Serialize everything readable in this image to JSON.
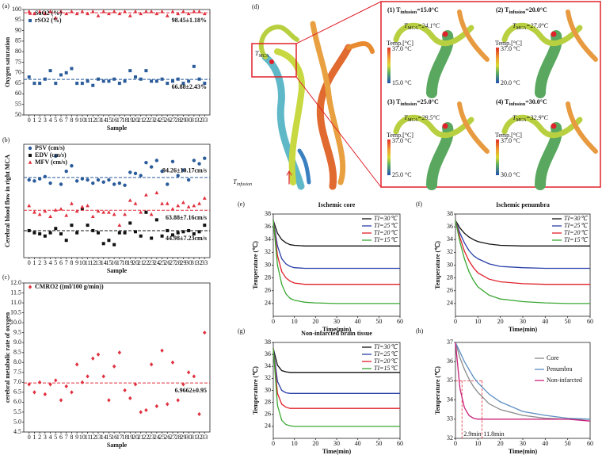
{
  "chart_data": [
    {
      "type": "scatter",
      "panel": "(a)",
      "ylabel": "Oxygen saturation",
      "xlabel": "Sample",
      "legend": "upper left",
      "x": [
        0,
        1,
        2,
        3,
        4,
        5,
        6,
        7,
        8,
        9,
        10,
        11,
        12,
        13,
        14,
        15,
        16,
        17,
        18,
        19,
        20,
        21,
        22,
        23,
        24,
        25,
        26,
        27,
        28,
        29,
        30,
        31,
        32,
        33
      ],
      "xlim": [
        -1,
        34
      ],
      "xticks": [
        0,
        1,
        2,
        3,
        4,
        5,
        6,
        7,
        8,
        9,
        10,
        11,
        12,
        13,
        14,
        15,
        16,
        17,
        18,
        19,
        20,
        21,
        22,
        23,
        24,
        25,
        26,
        27,
        28,
        29,
        30,
        31,
        32,
        33
      ],
      "ylim": [
        50,
        100
      ],
      "yticks": [
        50,
        55,
        60,
        65,
        70,
        75,
        80,
        85,
        90,
        95,
        100
      ],
      "series": [
        {
          "name": "SaO2 (%)",
          "color": "#e0303e",
          "marker": "triangle",
          "mean": 98.45,
          "mean_label": "98.45±1.18%",
          "values": [
            99,
            98,
            99,
            98,
            99,
            96,
            99,
            98,
            99,
            98,
            99,
            98,
            99,
            97,
            99,
            98,
            99,
            98,
            99,
            97,
            99,
            98,
            99,
            99,
            98,
            99,
            97,
            99,
            98,
            99,
            98,
            99,
            99,
            98
          ]
        },
        {
          "name": "rSO2 (%)",
          "color": "#2a5b9a",
          "marker": "square",
          "mean": 66.88,
          "mean_label": "66.88±2.43%",
          "values": [
            68,
            65,
            65,
            67,
            71,
            65,
            69,
            70,
            72,
            65,
            65,
            66,
            64,
            67,
            66,
            66,
            67,
            65,
            66,
            71,
            68,
            67,
            71,
            66,
            66,
            67,
            65,
            66,
            67,
            65,
            66,
            73,
            67,
            65
          ]
        }
      ]
    },
    {
      "type": "scatter",
      "panel": "(b)",
      "ylabel": "Cerebral blood flow in right MCA",
      "xlabel": "Sample",
      "legend": "upper left",
      "x": [
        0,
        1,
        2,
        3,
        4,
        5,
        6,
        7,
        8,
        9,
        10,
        11,
        12,
        13,
        14,
        15,
        16,
        17,
        18,
        19,
        20,
        21,
        22,
        23,
        24,
        25,
        26,
        27,
        28,
        29,
        30,
        31,
        32,
        33
      ],
      "xlim": [
        -1,
        34
      ],
      "xticks": [
        0,
        1,
        2,
        3,
        4,
        5,
        6,
        7,
        8,
        9,
        10,
        11,
        12,
        13,
        14,
        15,
        16,
        17,
        18,
        19,
        20,
        21,
        22,
        23,
        24,
        25,
        26,
        27,
        28,
        29,
        30,
        31,
        32,
        33
      ],
      "ylim": [
        20,
        125
      ],
      "series": [
        {
          "name": "PSV (cm/s)",
          "color": "#2a5b9a",
          "marker": "circle",
          "mean": 94.26,
          "mean_label": "94.26±10.17cm/s",
          "values": [
            92,
            91,
            93,
            95,
            89,
            114,
            88,
            100,
            105,
            91,
            93,
            92,
            89,
            92,
            90,
            92,
            88,
            89,
            87,
            99,
            98,
            96,
            108,
            104,
            110,
            100,
            88,
            109,
            96,
            101,
            92,
            110,
            107,
            112
          ]
        },
        {
          "name": "EDV (cm/s)",
          "color": "#111111",
          "marker": "square",
          "mean": 44.98,
          "mean_label": "44.98±7.23cm/s",
          "values": [
            45,
            43,
            42,
            40,
            43,
            47,
            42,
            36,
            50,
            43,
            65,
            50,
            45,
            43,
            33,
            36,
            32,
            43,
            43,
            52,
            44,
            40,
            62,
            38,
            55,
            40,
            45,
            41,
            43,
            44,
            45,
            42,
            44,
            50
          ]
        },
        {
          "name": "MFV (cm/s)",
          "color": "#e0303e",
          "marker": "triangle",
          "mean": 63.88,
          "mean_label": "63.88±7.16cm/s",
          "values": [
            68,
            62,
            60,
            63,
            58,
            64,
            65,
            59,
            70,
            63,
            67,
            68,
            58,
            63,
            62,
            62,
            60,
            50,
            60,
            73,
            70,
            62,
            78,
            60,
            80,
            70,
            70,
            65,
            68,
            71,
            67,
            68,
            70,
            75
          ]
        }
      ]
    },
    {
      "type": "scatter",
      "panel": "(c)",
      "ylabel": "cerebral metabolic rate of oxygen",
      "xlabel": "Sample",
      "legend": "upper left",
      "x": [
        0,
        1,
        2,
        3,
        4,
        5,
        6,
        7,
        8,
        9,
        10,
        11,
        12,
        13,
        14,
        15,
        16,
        17,
        18,
        19,
        20,
        21,
        22,
        23,
        24,
        25,
        26,
        27,
        28,
        29,
        30,
        31,
        32,
        33
      ],
      "xlim": [
        -1,
        34
      ],
      "xticks": [
        0,
        1,
        2,
        3,
        4,
        5,
        6,
        7,
        8,
        9,
        10,
        11,
        12,
        13,
        14,
        15,
        16,
        17,
        18,
        19,
        20,
        21,
        22,
        23,
        24,
        25,
        26,
        27,
        28,
        29,
        30,
        31,
        32,
        33
      ],
      "ylim": [
        4.5,
        12
      ],
      "yticks": [
        4.5,
        {
          "value": 5,
          "label": "5.0"
        },
        5.5,
        {
          "value": 6,
          "label": "6.0"
        },
        6.5,
        {
          "value": 7,
          "label": "7.0"
        },
        7.5,
        {
          "value": 8,
          "label": "8.0"
        },
        8.5,
        {
          "value": 9,
          "label": "9.0"
        },
        9.5,
        {
          "value": 10,
          "label": "10.0"
        },
        10.5,
        {
          "value": 11,
          "label": "11.0"
        },
        11.5,
        {
          "value": 12,
          "label": "12.0"
        }
      ],
      "series": [
        {
          "name": "CMRO2 ((ml/100 g/min))",
          "color": "#e0303e",
          "marker": "diamond",
          "mean": 6.9662,
          "mean_label": "6.9662±0.95",
          "values": [
            6.9,
            6.5,
            7.0,
            6.4,
            6.9,
            7.1,
            6.1,
            6.8,
            6.5,
            7.9,
            7.0,
            7.3,
            8.2,
            8.4,
            7.3,
            6.1,
            7.8,
            8.5,
            6.6,
            6.2,
            6.9,
            5.5,
            5.6,
            7.9,
            5.8,
            8.6,
            5.9,
            8.0,
            6.1,
            6.9,
            7.5,
            7.3,
            5.4,
            9.5
          ]
        }
      ]
    },
    {
      "type": "line",
      "panel": "(e)",
      "title": "Ischemic core",
      "ylabel": "Temperature (℃)",
      "xlabel": "Time(min)",
      "legend": "upper right",
      "x": [
        0,
        2,
        4,
        6,
        8,
        10,
        15,
        20,
        30,
        40,
        50,
        60
      ],
      "xlim": [
        0,
        60
      ],
      "xticks": [
        0,
        10,
        20,
        30,
        40,
        50,
        60
      ],
      "ylim": [
        22,
        38
      ],
      "yticks": [
        24,
        26,
        28,
        30,
        32,
        34,
        36,
        38
      ],
      "series": [
        {
          "name": "TI=30℃",
          "color": "#111111",
          "values": [
            37,
            35.0,
            34.0,
            33.5,
            33.2,
            33.1,
            33.0,
            33,
            33,
            33,
            33,
            33
          ]
        },
        {
          "name": "TI=25℃",
          "color": "#2a3fa8",
          "values": [
            37,
            33.0,
            31.0,
            30.2,
            29.8,
            29.6,
            29.5,
            29.5,
            29.5,
            29.5,
            29.5,
            29.5
          ]
        },
        {
          "name": "TI=20℃",
          "color": "#e0202a",
          "values": [
            37,
            31.5,
            29.0,
            28.0,
            27.5,
            27.2,
            27.0,
            27,
            27,
            27,
            27,
            27
          ]
        },
        {
          "name": "TI=15℃",
          "color": "#3aa832",
          "values": [
            37,
            30.0,
            27.0,
            25.5,
            24.8,
            24.5,
            24.2,
            24.1,
            24,
            24,
            24,
            24
          ]
        }
      ]
    },
    {
      "type": "line",
      "panel": "(f)",
      "title": "Ischemic penumbra",
      "ylabel": "Temperature (℃)",
      "xlabel": "Time(min)",
      "legend": "upper right",
      "x": [
        0,
        2,
        4,
        6,
        8,
        10,
        15,
        20,
        30,
        40,
        50,
        60
      ],
      "xlim": [
        0,
        60
      ],
      "xticks": [
        0,
        10,
        20,
        30,
        40,
        50,
        60
      ],
      "ylim": [
        22,
        38
      ],
      "yticks": [
        24,
        26,
        28,
        30,
        32,
        34,
        36,
        38
      ],
      "series": [
        {
          "name": "TI=30℃",
          "color": "#111111",
          "values": [
            37,
            35.8,
            35.0,
            34.4,
            34.0,
            33.7,
            33.3,
            33.1,
            33.0,
            33,
            33,
            33
          ]
        },
        {
          "name": "TI=25℃",
          "color": "#2a3fa8",
          "values": [
            37,
            35.0,
            33.5,
            32.3,
            31.5,
            31.0,
            30.2,
            29.8,
            29.6,
            29.5,
            29.5,
            29.5
          ]
        },
        {
          "name": "TI=20℃",
          "color": "#e0202a",
          "values": [
            37,
            34.3,
            32.2,
            30.7,
            29.6,
            28.8,
            27.8,
            27.4,
            27.1,
            27.0,
            27,
            27
          ]
        },
        {
          "name": "TI=15℃",
          "color": "#3aa832",
          "values": [
            37,
            33.6,
            31.0,
            29.0,
            27.6,
            26.6,
            25.3,
            24.7,
            24.3,
            24.1,
            24,
            24
          ]
        }
      ]
    },
    {
      "type": "line",
      "panel": "(g)",
      "title": "Non-infarcted brain tissue",
      "ylabel": "Temperature (℃)",
      "xlabel": "Time(min)",
      "legend": "upper right",
      "x": [
        0,
        2,
        4,
        6,
        8,
        10,
        15,
        20,
        30,
        40,
        50,
        60
      ],
      "xlim": [
        0,
        60
      ],
      "xticks": [
        0,
        10,
        20,
        30,
        40,
        50,
        60
      ],
      "ylim": [
        22,
        38
      ],
      "yticks": [
        24,
        26,
        28,
        30,
        32,
        34,
        36,
        38
      ],
      "series": [
        {
          "name": "TI=30℃",
          "color": "#111111",
          "values": [
            37,
            34.2,
            33.3,
            33.1,
            33,
            33,
            33,
            33,
            33,
            33,
            33,
            33
          ]
        },
        {
          "name": "TI=25℃",
          "color": "#2a3fa8",
          "values": [
            37,
            31.5,
            30.0,
            29.6,
            29.5,
            29.5,
            29.5,
            29.5,
            29.5,
            29.5,
            29.5,
            29.5
          ]
        },
        {
          "name": "TI=20℃",
          "color": "#e0202a",
          "values": [
            37,
            29.5,
            27.7,
            27.2,
            27.0,
            27,
            27,
            27,
            27,
            27,
            27,
            27
          ]
        },
        {
          "name": "TI=15℃",
          "color": "#3aa832",
          "values": [
            37,
            27.5,
            25.0,
            24.3,
            24.1,
            24,
            24,
            24,
            24,
            24,
            24,
            24
          ]
        }
      ]
    },
    {
      "type": "line",
      "panel": "(h)",
      "ylabel": "Temperature (℃)",
      "xlabel": "Time(min)",
      "legend": "upper right",
      "x": [
        0,
        2,
        4,
        6,
        8,
        10,
        15,
        20,
        30,
        40,
        50,
        60
      ],
      "xlim": [
        0,
        60
      ],
      "xticks": [
        0,
        10,
        20,
        30,
        40,
        50,
        60
      ],
      "ylim": [
        32,
        37
      ],
      "yticks": [
        32,
        33,
        34,
        35,
        36,
        37
      ],
      "hline": 35,
      "markers": [
        {
          "x": 2.9,
          "label": "2.9min"
        },
        {
          "x": 11.8,
          "label": "11.8min"
        }
      ],
      "series": [
        {
          "name": "Core",
          "color": "#8a8a8a",
          "values": [
            37,
            36.2,
            35.6,
            35.1,
            34.7,
            34.4,
            33.8,
            33.5,
            33.2,
            33.05,
            33.0,
            33.0
          ]
        },
        {
          "name": "Penumbra",
          "color": "#5b8dc0",
          "values": [
            37,
            36.5,
            36.0,
            35.6,
            35.2,
            34.9,
            34.3,
            33.9,
            33.4,
            33.2,
            33.05,
            33.0
          ]
        },
        {
          "name": "Non-infarcted",
          "color": "#c8207a",
          "values": [
            37,
            34.6,
            33.6,
            33.2,
            33.05,
            33.0,
            33,
            33,
            33,
            33,
            33,
            32.9
          ]
        }
      ]
    }
  ],
  "diagram": {
    "panel": "(d)",
    "mca": {
      "main": "T",
      "sub": "MCA"
    },
    "inlet": {
      "main": "T",
      "sub": "infusion"
    },
    "subpanels": [
      {
        "prefix": "(1) T",
        "sub": "infusion",
        "suffix": "=15.0°C",
        "mca_main": "T",
        "mca_sub": "MCA",
        "mca_value": "=24.1°C",
        "scale_title": "Temp.[°C]",
        "scale_max": "37.0 °C",
        "scale_min": "15.0 °C"
      },
      {
        "prefix": "(2) T",
        "sub": "infusion",
        "suffix": "=20.0°C",
        "mca_main": "T",
        "mca_sub": "MCA",
        "mca_value": "=27.0°C",
        "scale_title": "Temp.[°C]",
        "scale_max": "37.0 °C",
        "scale_min": "20.0 °C"
      },
      {
        "prefix": "(3) T",
        "sub": "infusion",
        "suffix": "=25.0°C",
        "mca_main": "T",
        "mca_sub": "MCA",
        "mca_value": "=29.5°C",
        "scale_title": "Temp.[°C]",
        "scale_max": "37.0 °C",
        "scale_min": "25.0 °C"
      },
      {
        "prefix": "(4) T",
        "sub": "infusion",
        "suffix": "=30.0°C",
        "mca_main": "T",
        "mca_sub": "MCA",
        "mca_value": "=32.9°C",
        "scale_title": "Temp.[°C]",
        "scale_max": "37.0 °C",
        "scale_min": "30.0 °C"
      }
    ]
  }
}
